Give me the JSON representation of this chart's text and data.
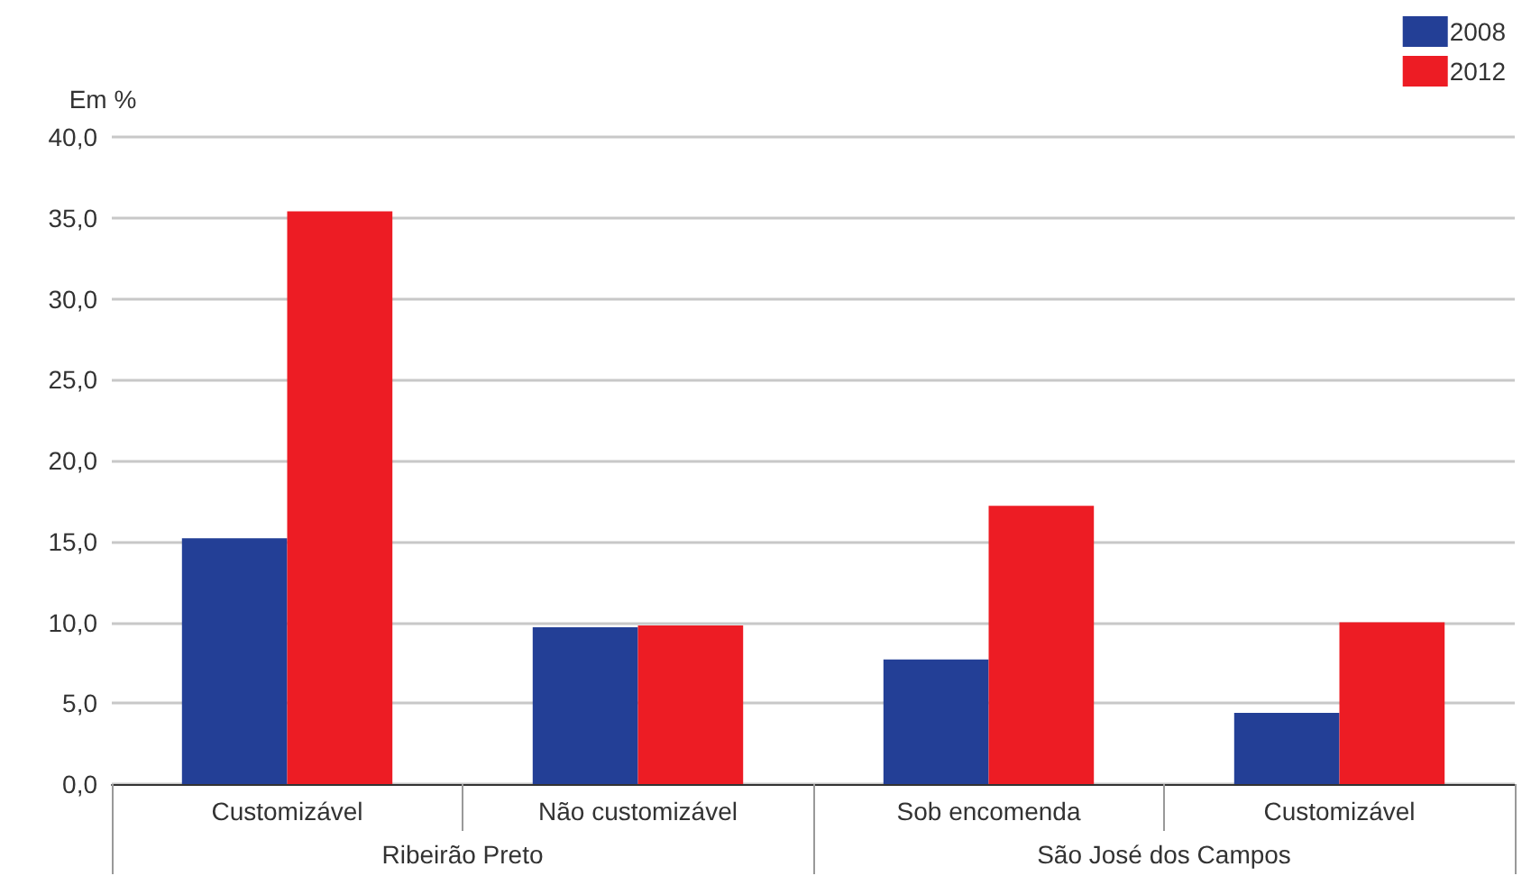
{
  "chart_data": {
    "type": "bar",
    "ylabel": "Em %",
    "categories": [
      "Customizável",
      "Não customizável",
      "Sob encomenda",
      "Customizável"
    ],
    "series": [
      {
        "name": "2008",
        "color": "#233f96",
        "values": [
          15.2,
          9.7,
          7.7,
          4.4
        ]
      },
      {
        "name": "2012",
        "color": "#ed1c24",
        "values": [
          35.4,
          9.8,
          17.2,
          10.0
        ]
      }
    ],
    "annotations": [
      "Ribeirão Preto",
      "São José dos Campos"
    ],
    "ylim": [
      0,
      40
    ],
    "yticks": [
      {
        "value": 0,
        "label": "0,0"
      },
      {
        "value": 5,
        "label": "5,0"
      },
      {
        "value": 10,
        "label": "10,0"
      },
      {
        "value": 15,
        "label": "15,0"
      },
      {
        "value": 20,
        "label": "20,0"
      },
      {
        "value": 25,
        "label": "25,0"
      },
      {
        "value": 30,
        "label": "30,0"
      },
      {
        "value": 35,
        "label": "35,0"
      },
      {
        "value": 40,
        "label": "40,0"
      }
    ],
    "grid": "y",
    "legend": "top right"
  }
}
